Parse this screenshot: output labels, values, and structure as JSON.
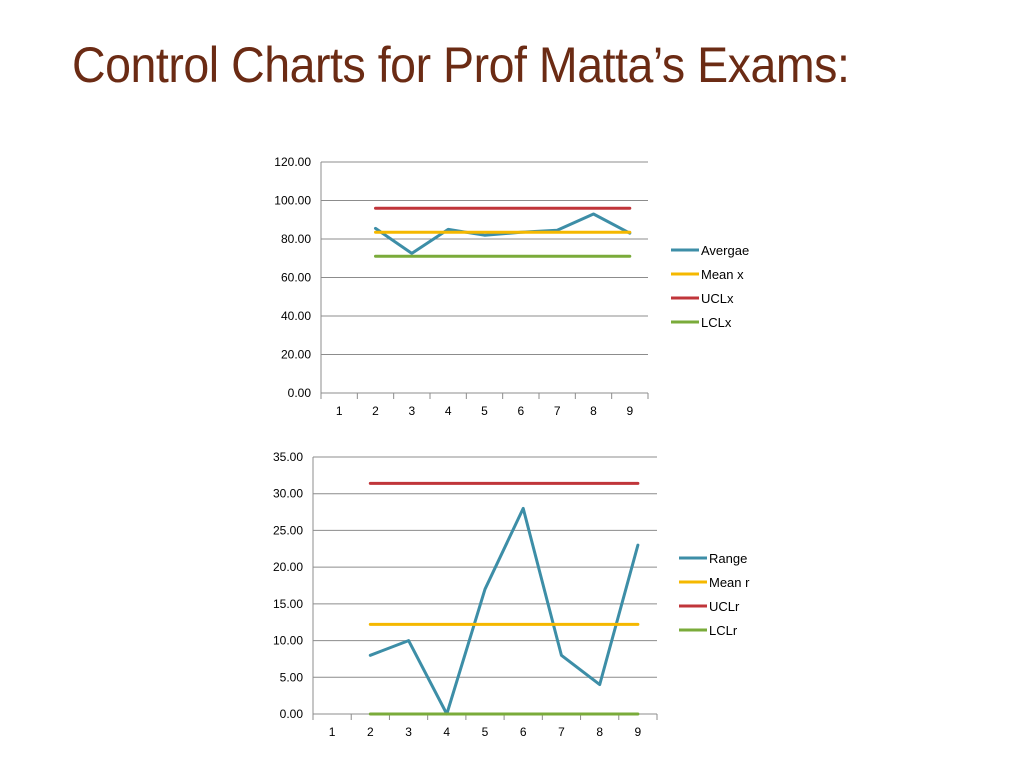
{
  "slide": {
    "title": "Control Charts for Prof Matta’s Exams:"
  },
  "chart_data": [
    {
      "type": "line",
      "categories": [
        "1",
        "2",
        "3",
        "4",
        "5",
        "6",
        "7",
        "8",
        "9"
      ],
      "ylim": [
        0,
        120
      ],
      "yticks": [
        "0.00",
        "20.00",
        "40.00",
        "60.00",
        "80.00",
        "100.00",
        "120.00"
      ],
      "grid": true,
      "legend_position": "right",
      "series": [
        {
          "name": "Avergae",
          "color": "#3d8ea7",
          "values": [
            null,
            85.5,
            72.5,
            85,
            82,
            83.5,
            84.5,
            93,
            83
          ]
        },
        {
          "name": "Mean x",
          "color": "#f5b800",
          "values": [
            null,
            83.5,
            83.5,
            83.5,
            83.5,
            83.5,
            83.5,
            83.5,
            83.5
          ]
        },
        {
          "name": "UCLx",
          "color": "#c0353a",
          "values": [
            null,
            96,
            96,
            96,
            96,
            96,
            96,
            96,
            96
          ]
        },
        {
          "name": "LCLx",
          "color": "#7aab3a",
          "values": [
            null,
            71,
            71,
            71,
            71,
            71,
            71,
            71,
            71
          ]
        }
      ]
    },
    {
      "type": "line",
      "categories": [
        "1",
        "2",
        "3",
        "4",
        "5",
        "6",
        "7",
        "8",
        "9"
      ],
      "ylim": [
        0,
        35
      ],
      "yticks": [
        "0.00",
        "5.00",
        "10.00",
        "15.00",
        "20.00",
        "25.00",
        "30.00",
        "35.00"
      ],
      "grid": true,
      "legend_position": "right",
      "series": [
        {
          "name": "Range",
          "color": "#3d8ea7",
          "values": [
            null,
            8,
            10,
            0,
            17,
            28,
            8,
            4,
            23
          ]
        },
        {
          "name": "Mean r",
          "color": "#f5b800",
          "values": [
            null,
            12.2,
            12.2,
            12.2,
            12.2,
            12.2,
            12.2,
            12.2,
            12.2
          ]
        },
        {
          "name": "UCLr",
          "color": "#c0353a",
          "values": [
            null,
            31.4,
            31.4,
            31.4,
            31.4,
            31.4,
            31.4,
            31.4,
            31.4
          ]
        },
        {
          "name": "LCLr",
          "color": "#7aab3a",
          "values": [
            null,
            0,
            0,
            0,
            0,
            0,
            0,
            0,
            0
          ]
        }
      ]
    }
  ]
}
